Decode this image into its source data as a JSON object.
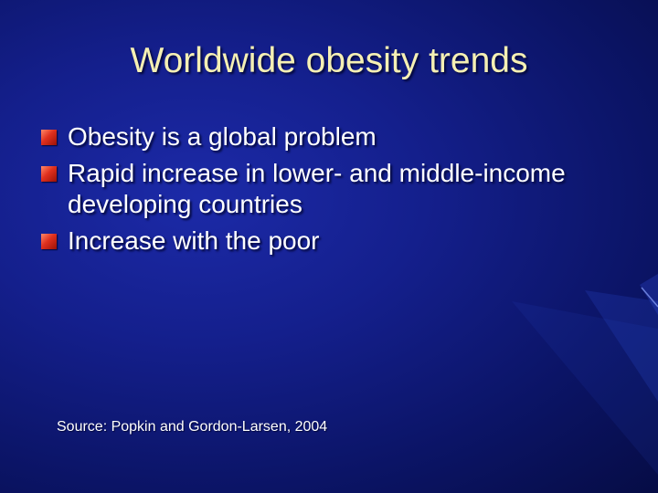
{
  "slide": {
    "title": "Worldwide obesity trends",
    "bullets": [
      "Obesity is a global problem",
      "Rapid increase in lower- and middle-income developing countries",
      "Increase with the poor"
    ],
    "source": "Source:  Popkin and Gordon-Larsen, 2004"
  },
  "colors": {
    "background": "#141f8c",
    "title": "#f5f0b4",
    "text": "#ffffff",
    "bullet_marker": "#e0301e"
  },
  "icons": {
    "bullet": "red-square-bullet-icon"
  }
}
